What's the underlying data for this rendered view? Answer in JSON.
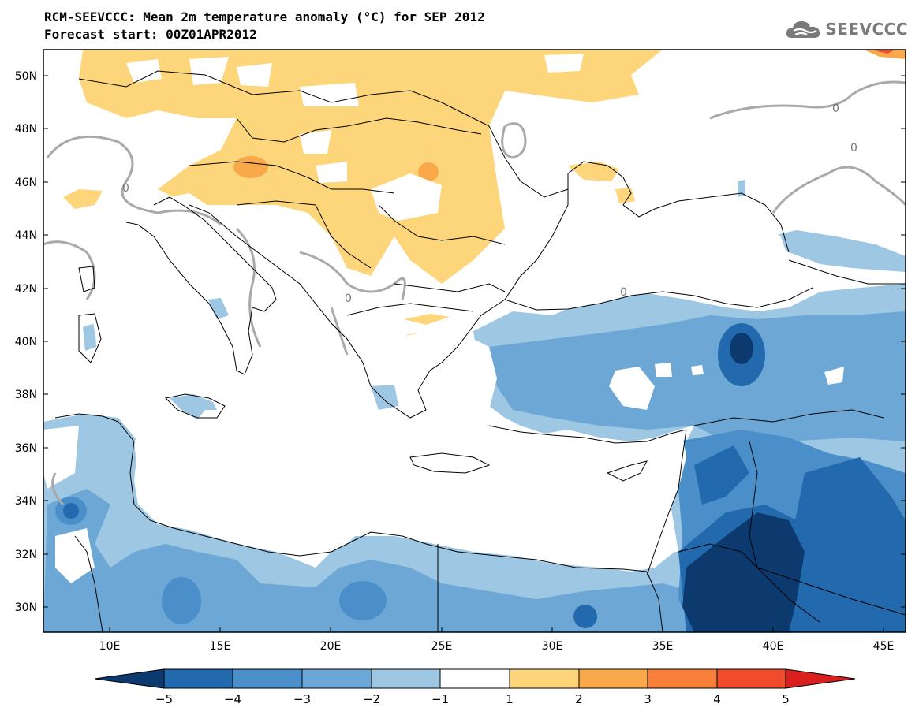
{
  "header": {
    "title_line1": "RCM-SEEVCCC: Mean 2m temperature anomaly (°C) for SEP 2012",
    "title_line2": "Forecast start: 00Z01APR2012"
  },
  "logo": {
    "icon": "cloud-icon",
    "text": "SEEVCCC"
  },
  "map": {
    "lat_labels": [
      "50N",
      "48N",
      "46N",
      "44N",
      "42N",
      "40N",
      "38N",
      "36N",
      "34N",
      "32N",
      "30N"
    ],
    "lon_labels": [
      "10E",
      "15E",
      "20E",
      "25E",
      "30E",
      "35E",
      "40E",
      "45E"
    ],
    "contour_labels": [
      "0",
      "0",
      "0",
      "0",
      "0"
    ]
  },
  "colorbar": {
    "labels": [
      "−5",
      "−4",
      "−3",
      "−2",
      "−1",
      "1",
      "2",
      "3",
      "4",
      "5"
    ],
    "colors": [
      "#0c3a6e",
      "#2369ad",
      "#4a8fc9",
      "#6ca7d6",
      "#9dc7e3",
      "#ffffff",
      "#fdd57a",
      "#f9a94a",
      "#f8803a",
      "#f04b2a",
      "#d9201f"
    ]
  },
  "palette": {
    "warm1": "#fdd57a",
    "warm2": "#f9a94a",
    "cool1": "#9dc7e3",
    "cool2": "#6ca7d6",
    "cool3": "#4a8fc9",
    "cool4": "#2369ad",
    "cool5": "#0c3a6e",
    "contour": "#a9a9a9"
  }
}
